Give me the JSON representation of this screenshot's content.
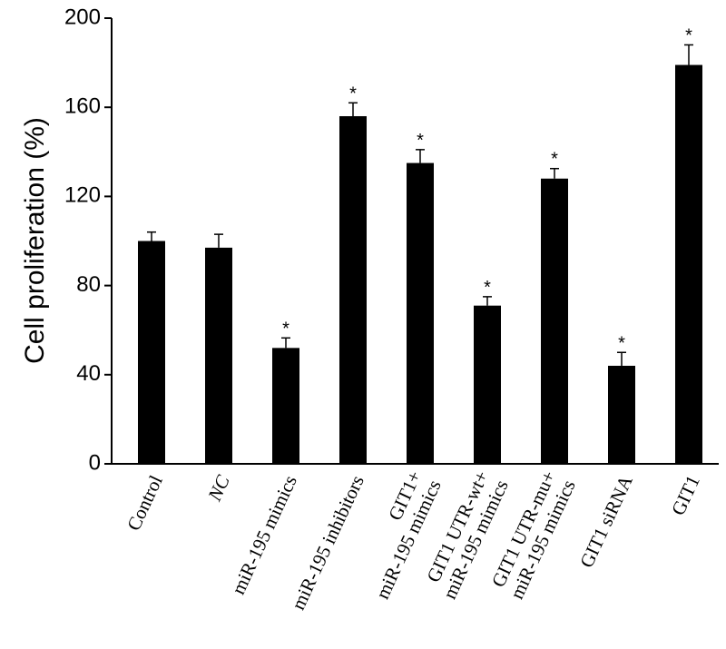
{
  "chart_data": {
    "type": "bar",
    "y_label": "Cell proliferation (%)",
    "categories": [
      [
        "Control"
      ],
      [
        "NC"
      ],
      [
        "miR-195 mimics"
      ],
      [
        "miR-195 inhibitors"
      ],
      [
        "GIT1+",
        "miR-195 mimics"
      ],
      [
        "GIT1 UTR-wt+",
        "miR-195 mimics"
      ],
      [
        "GIT1 UTR-mu+",
        "miR-195 mimics"
      ],
      [
        "GIT1 siRNA"
      ],
      [
        "GIT1"
      ]
    ],
    "values": [
      100,
      97,
      52,
      156,
      135,
      71,
      128,
      44,
      179
    ],
    "errors": [
      4,
      6,
      4.5,
      6,
      6,
      4,
      4.5,
      6,
      9
    ],
    "significance": [
      null,
      null,
      "*",
      "*",
      "*",
      "*",
      "*",
      "*",
      "*"
    ],
    "color": "#000000",
    "ylim": [
      0,
      200
    ],
    "yticks": [
      0,
      40,
      80,
      120,
      160,
      200
    ],
    "grid": false
  }
}
